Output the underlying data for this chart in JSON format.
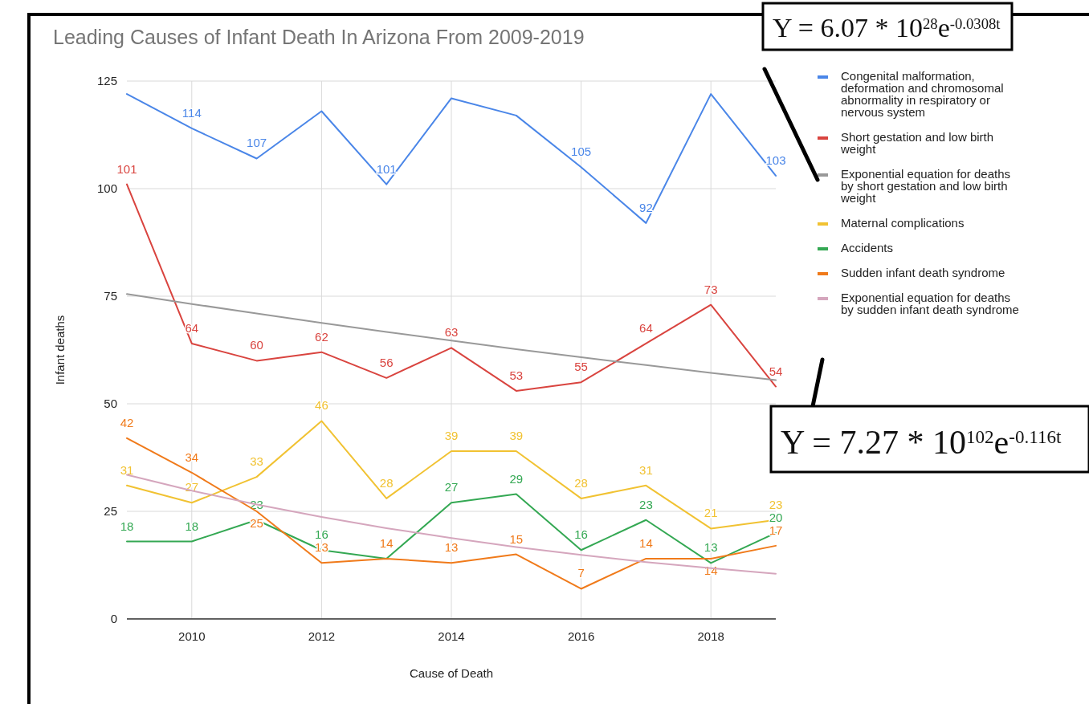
{
  "chart_data": {
    "type": "line",
    "title": "Leading Causes of Infant Death In Arizona From 2009-2019",
    "xlabel": "Cause of Death",
    "ylabel": "Infant deaths",
    "x": [
      2009,
      2010,
      2011,
      2012,
      2013,
      2014,
      2015,
      2016,
      2017,
      2018,
      2019
    ],
    "xlim": [
      2009,
      2019
    ],
    "xticks": [
      2010,
      2012,
      2014,
      2016,
      2018
    ],
    "ylim": [
      0,
      125
    ],
    "yticks": [
      0,
      25,
      50,
      75,
      100,
      125
    ],
    "grid": true,
    "legend": "right",
    "marker": "none",
    "line_style": "solid",
    "series": [
      {
        "name": "Congenital malformation, deformation and chromosomal abnormality in respiratory or nervous system",
        "color": "#4a86e8",
        "values": [
          122,
          114,
          107,
          118,
          101,
          121,
          117,
          105,
          92,
          122,
          103
        ],
        "value_labels": [
          null,
          "114",
          "107",
          null,
          "101",
          null,
          null,
          "105",
          "92",
          null,
          "103"
        ]
      },
      {
        "name": "Short gestation and low birth weight",
        "color": "#d9443f",
        "values": [
          101,
          64,
          60,
          62,
          56,
          63,
          53,
          55,
          64,
          73,
          54
        ],
        "value_labels": [
          "101",
          "64",
          "60",
          "62",
          "56",
          "63",
          "53",
          "55",
          "64",
          "73",
          "54"
        ]
      },
      {
        "name": "Exponential equation for deaths by short gestation and low birth weight",
        "color": "#999999",
        "values": [
          75.5,
          73.2,
          71.0,
          68.8,
          66.7,
          64.7,
          62.7,
          60.8,
          59.0,
          57.2,
          55.5
        ]
      },
      {
        "name": "Maternal complications",
        "color": "#f1c232",
        "values": [
          31,
          27,
          33,
          46,
          28,
          39,
          39,
          28,
          31,
          21,
          23
        ],
        "value_labels": [
          "31",
          "27",
          "33",
          "46",
          "28",
          "39",
          "39",
          "28",
          "31",
          "21",
          "23"
        ]
      },
      {
        "name": "Accidents",
        "color": "#34a853",
        "values": [
          18,
          18,
          23,
          16,
          14,
          27,
          29,
          16,
          23,
          13,
          20
        ],
        "value_labels": [
          "18",
          "18",
          "23",
          "16",
          null,
          "27",
          "29",
          "16",
          "23",
          "13",
          "20"
        ]
      },
      {
        "name": "Sudden infant death syndrome",
        "color": "#f07a1a",
        "values": [
          42,
          34,
          25,
          13,
          14,
          13,
          15,
          7,
          14,
          14,
          17
        ],
        "value_labels": [
          "42",
          "34",
          "25",
          "13",
          "14",
          "13",
          "15",
          "7",
          "14",
          "14",
          "17"
        ]
      },
      {
        "name": "Exponential equation for deaths by sudden infant death syndrome",
        "color": "#d5a6bd",
        "values": [
          33.5,
          29.8,
          26.6,
          23.7,
          21.1,
          18.8,
          16.7,
          14.9,
          13.2,
          11.8,
          10.5
        ]
      }
    ],
    "annotations": [
      "Y = 6.07 * 10$^{28}$e$^{-0.0308t}$",
      "Y = 7.27 * 10$^{102}$e$^{-0.116t}$"
    ]
  }
}
